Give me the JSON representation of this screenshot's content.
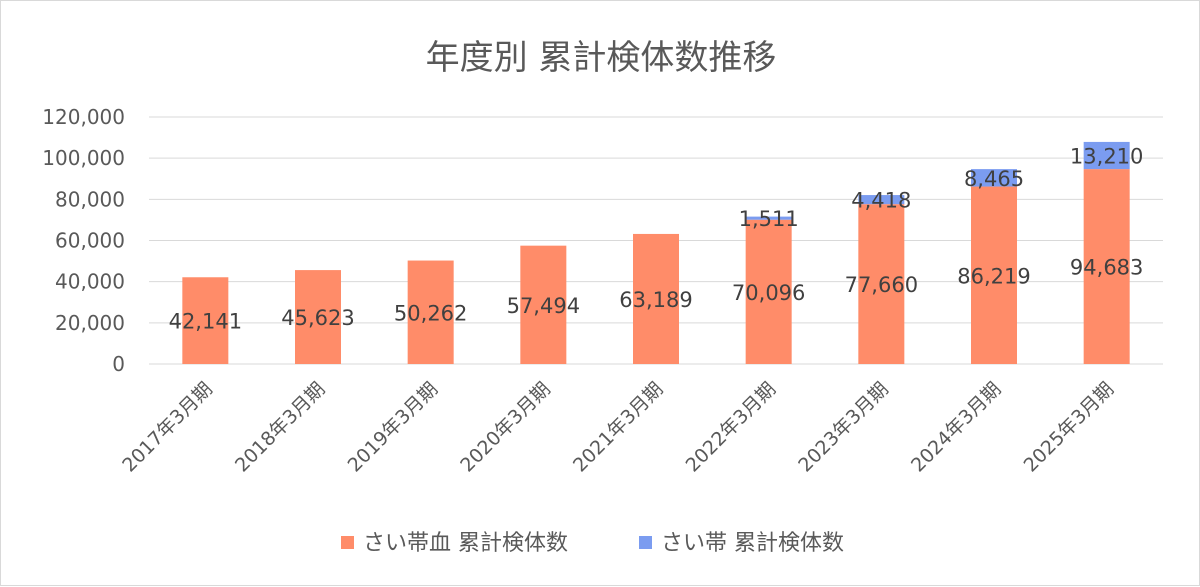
{
  "chart_data": {
    "type": "bar",
    "stacked": true,
    "title": "年度別 累計検体数推移",
    "categories": [
      "2017年3月期",
      "2018年3月期",
      "2019年3月期",
      "2020年3月期",
      "2021年3月期",
      "2022年3月期",
      "2023年3月期",
      "2024年3月期",
      "2025年3月期"
    ],
    "series": [
      {
        "name": "さい帯血 累計検体数",
        "color": "#ff8c69",
        "values": [
          42141,
          45623,
          50262,
          57494,
          63189,
          70096,
          77660,
          86219,
          94683
        ],
        "labels": [
          "42,141",
          "45,623",
          "50,262",
          "57,494",
          "63,189",
          "70,096",
          "77,660",
          "86,219",
          "94,683"
        ]
      },
      {
        "name": "さい帯 累計検体数",
        "color": "#7b9cf0",
        "values": [
          0,
          0,
          0,
          0,
          0,
          1511,
          4418,
          8465,
          13210
        ],
        "labels": [
          "",
          "",
          "",
          "",
          "",
          "1,511",
          "4,418",
          "8,465",
          "13,210"
        ]
      }
    ],
    "ylim": [
      0,
      120000
    ],
    "yticks": [
      0,
      20000,
      40000,
      60000,
      80000,
      100000,
      120000
    ],
    "ytick_labels": [
      "0",
      "20,000",
      "40,000",
      "60,000",
      "80,000",
      "100,000",
      "120,000"
    ],
    "grid": true,
    "legend": "bottom"
  }
}
